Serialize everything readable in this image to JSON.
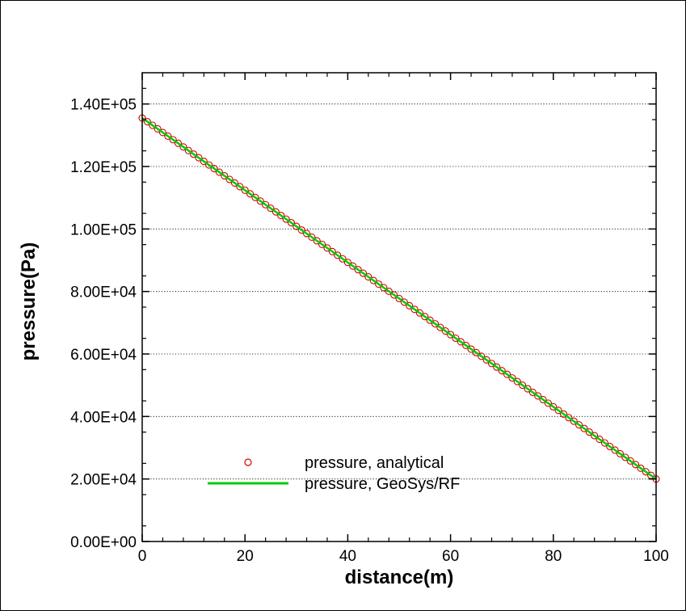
{
  "chart_data": {
    "type": "line",
    "xlabel": "distance(m)",
    "ylabel": "pressure(Pa)",
    "xlim": [
      0,
      100
    ],
    "ylim": [
      0,
      150000
    ],
    "x_ticks": [
      0,
      20,
      40,
      60,
      80,
      100
    ],
    "x_tick_labels": [
      "0",
      "20",
      "40",
      "60",
      "80",
      "100"
    ],
    "y_ticks": [
      0,
      20000,
      40000,
      60000,
      80000,
      100000,
      120000,
      140000
    ],
    "y_tick_labels": [
      "0.00E+00",
      "2.00E+04",
      "4.00E+04",
      "6.00E+04",
      "8.00E+04",
      "1.00E+05",
      "1.20E+05",
      "1.40E+05"
    ],
    "grid": "horizontal-dotted",
    "legend_position": "bottom-left",
    "series": [
      {
        "name": "pressure, analytical",
        "style": "markers",
        "marker": "open-circle",
        "color": "#cc0000",
        "x_start": 0,
        "x_end": 100,
        "x_step": 1,
        "y_at_x_start": 135500,
        "y_at_x_end": 20000
      },
      {
        "name": "pressure, GeoSys/RF",
        "style": "line",
        "color": "#00cc00",
        "x": [
          0,
          100
        ],
        "y": [
          135500,
          20000
        ]
      }
    ]
  }
}
